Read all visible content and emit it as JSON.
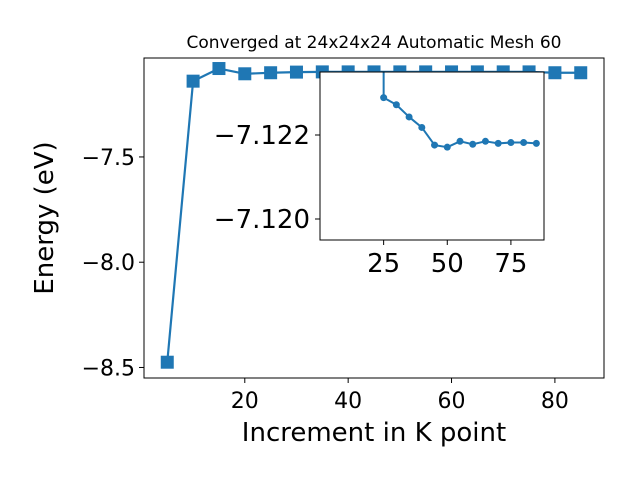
{
  "chart_data": {
    "main": {
      "type": "line",
      "title": "Converged at 24x24x24 Automatic Mesh 60",
      "xlabel": "Increment in K point",
      "ylabel": "Energy (eV)",
      "xlim": [
        0.5,
        89.5
      ],
      "ylim": [
        -8.55,
        -7.03
      ],
      "xticks": [
        20,
        40,
        60,
        80
      ],
      "xtick_labels": [
        "20",
        "40",
        "60",
        "80"
      ],
      "yticks": [
        -8.5,
        -8.0,
        -7.5
      ],
      "ytick_labels": [
        "−8.5",
        "−8.0",
        "−7.5"
      ],
      "marker": "square",
      "series": [
        {
          "color": "#1f77b4",
          "x": [
            5,
            10,
            15,
            20,
            25,
            30,
            35,
            40,
            45,
            50,
            55,
            60,
            65,
            70,
            75,
            80,
            85
          ],
          "y": [
            -8.475,
            -7.14,
            -7.08,
            -7.105,
            -7.1,
            -7.097,
            -7.096,
            -7.096,
            -7.096,
            -7.096,
            -7.096,
            -7.096,
            -7.096,
            -7.096,
            -7.096,
            -7.1,
            -7.1
          ]
        }
      ],
      "grid": false,
      "legend": "none"
    },
    "inset": {
      "type": "line",
      "xlim": [
        0,
        88
      ],
      "ylim": [
        -7.1195,
        -7.1235
      ],
      "xticks": [
        25,
        50,
        75
      ],
      "xtick_labels": [
        "25",
        "50",
        "75"
      ],
      "yticks": [
        -7.122,
        -7.12
      ],
      "ytick_labels": [
        "−7.122",
        "−7.120"
      ],
      "marker": "circle",
      "series": [
        {
          "color": "#1f77b4",
          "x": [
            25,
            30,
            35,
            40,
            45,
            50,
            55,
            60,
            65,
            70,
            75,
            80,
            85
          ],
          "y": [
            -7.12289,
            -7.12272,
            -7.12243,
            -7.12218,
            -7.12176,
            -7.12171,
            -7.12185,
            -7.12178,
            -7.12185,
            -7.1218,
            -7.12182,
            -7.12182,
            -7.1218
          ]
        }
      ],
      "grid": false
    }
  }
}
